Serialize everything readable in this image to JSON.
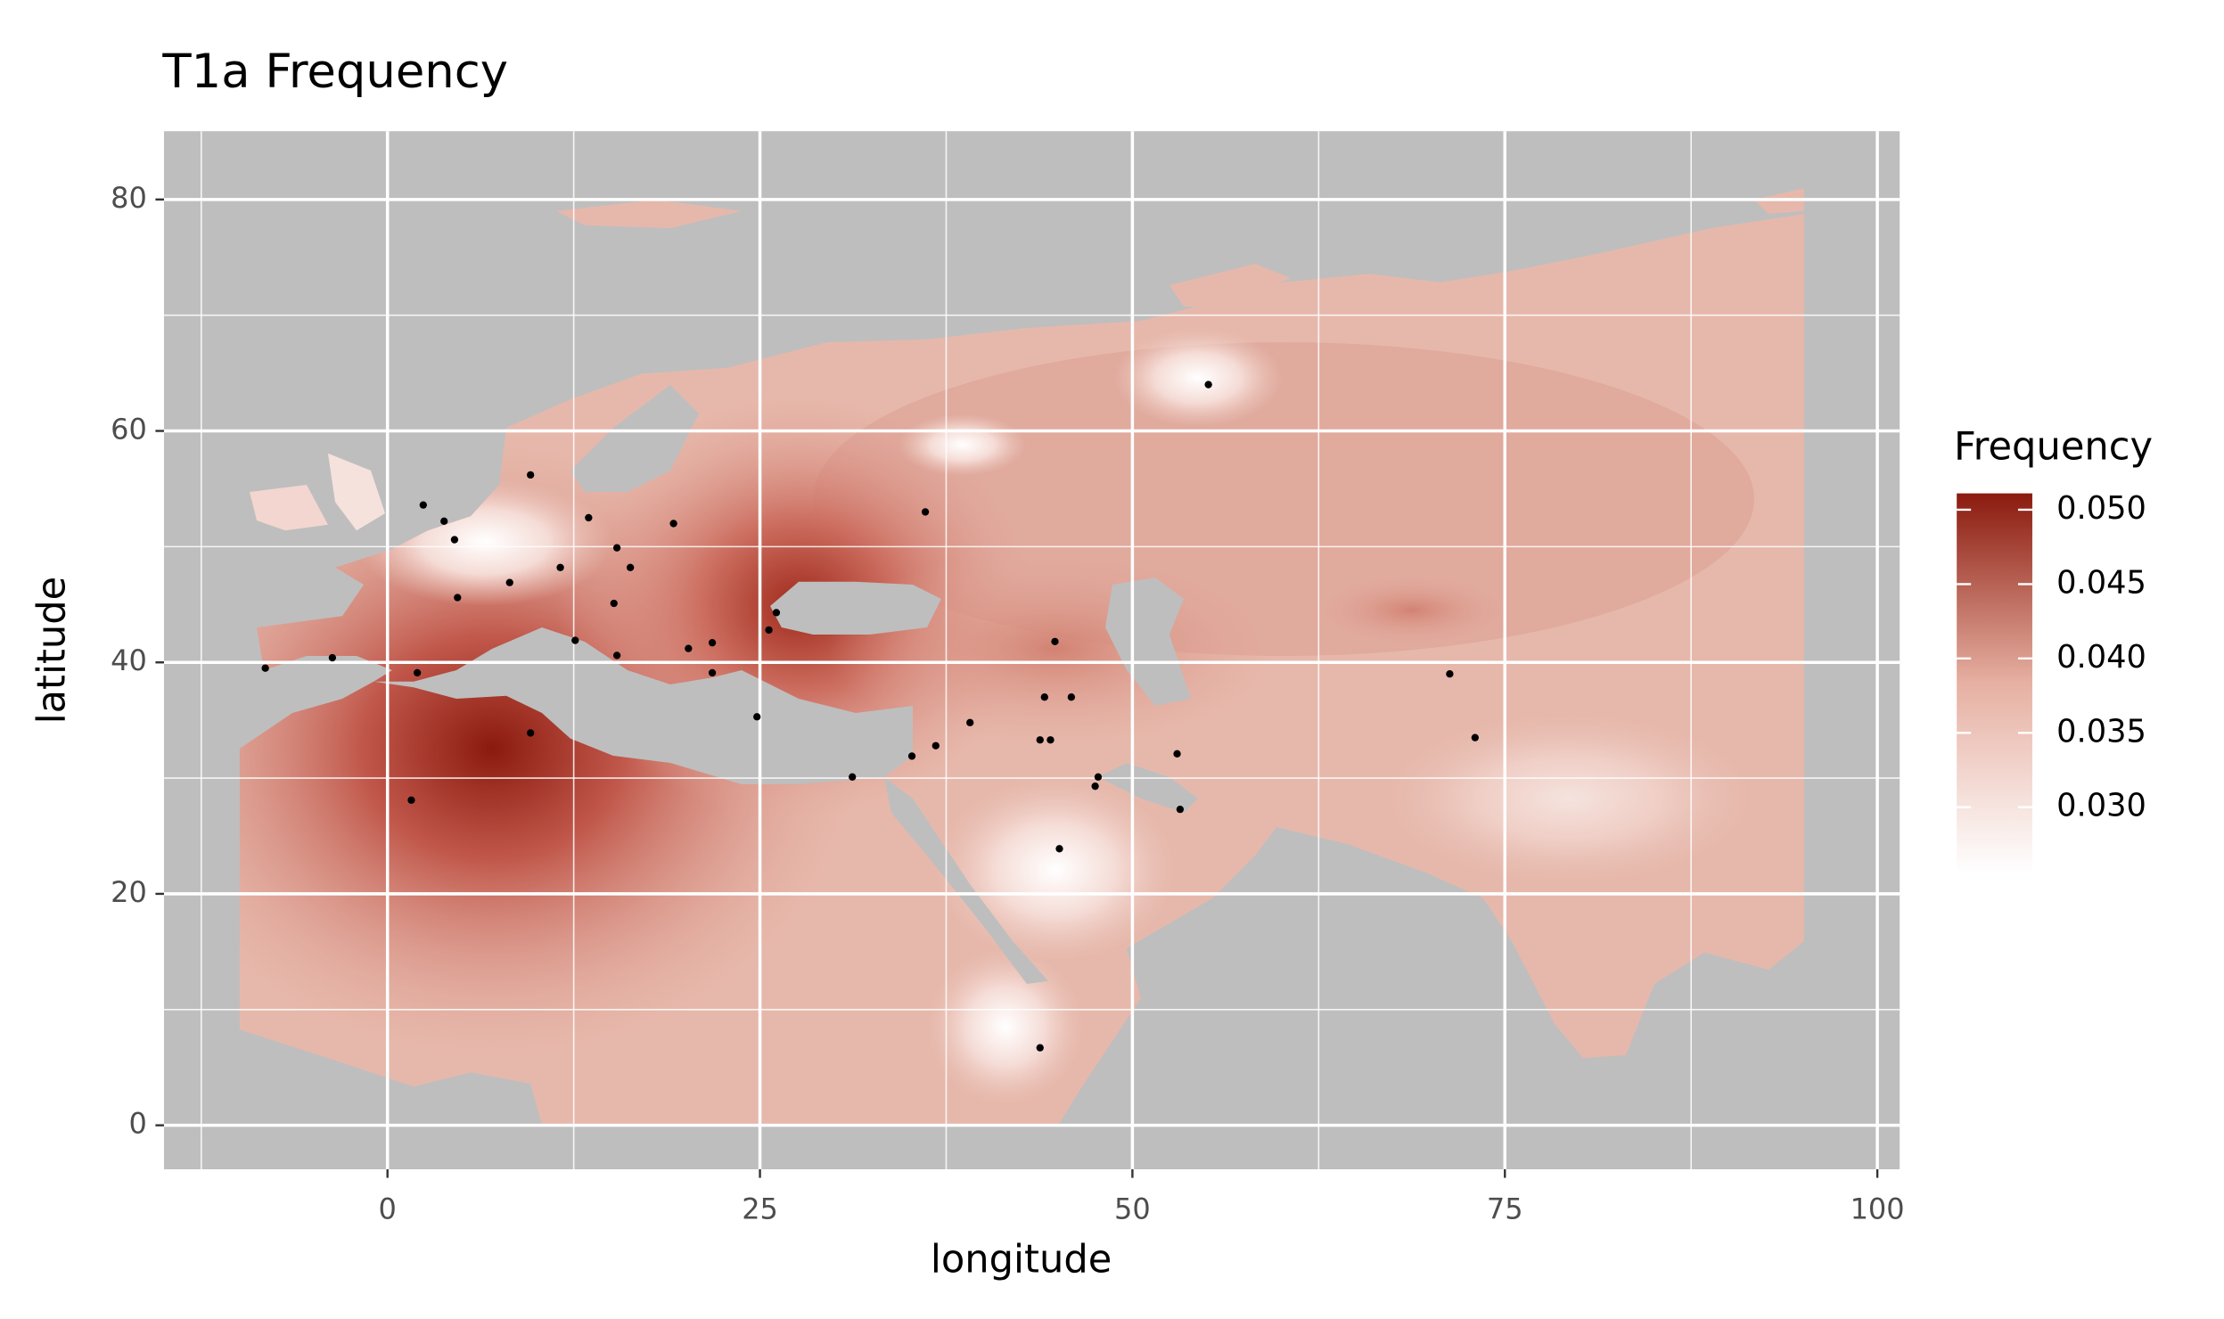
{
  "chart_data": {
    "type": "map",
    "title": "T1a Frequency",
    "xlabel": "longitude",
    "ylabel": "latitude",
    "legend_title": "Frequency",
    "xlim": [
      -15.0,
      101.5
    ],
    "ylim": [
      -3.8,
      85.9
    ],
    "xticks": [
      0,
      25,
      50,
      75,
      100
    ],
    "yticks": [
      0,
      20,
      40,
      60,
      80
    ],
    "grid": true,
    "point_color": "#000000",
    "x": [
      55.1,
      36.1,
      9.6,
      2.4,
      3.8,
      4.5,
      13.5,
      19.2,
      15.4,
      11.6,
      16.3,
      8.2,
      4.7,
      15.2,
      12.6,
      15.4,
      20.2,
      21.8,
      21.8,
      26.1,
      25.6,
      24.8,
      -8.2,
      -3.7,
      2.0,
      9.6,
      1.6,
      31.2,
      35.2,
      36.8,
      39.1,
      44.8,
      44.1,
      45.9,
      43.8,
      44.5,
      53.0,
      47.7,
      47.5,
      53.2,
      45.1,
      43.8,
      71.3,
      73.0
    ],
    "y": [
      64.0,
      53.0,
      56.2,
      53.6,
      52.2,
      50.6,
      52.5,
      52.0,
      49.9,
      48.2,
      48.2,
      46.9,
      45.6,
      45.1,
      41.9,
      40.6,
      41.2,
      41.7,
      39.1,
      44.3,
      42.8,
      35.3,
      39.5,
      40.4,
      39.1,
      33.9,
      28.1,
      30.1,
      31.9,
      32.8,
      34.8,
      41.8,
      37.0,
      37.0,
      33.3,
      33.3,
      32.1,
      30.1,
      29.3,
      27.3,
      23.9,
      6.7,
      39.0,
      33.5
    ],
    "colorbar": {
      "lim": [
        0.0256,
        0.0511
      ],
      "ticks": [
        {
          "value": 0.03,
          "label": "0.030"
        },
        {
          "value": 0.035,
          "label": "0.035"
        },
        {
          "value": 0.04,
          "label": "0.040"
        },
        {
          "value": 0.045,
          "label": "0.045"
        },
        {
          "value": 0.05,
          "label": "0.050"
        }
      ],
      "colors": [
        "#ffffff",
        "#e6b0a2",
        "#8b1a0e"
      ]
    }
  }
}
